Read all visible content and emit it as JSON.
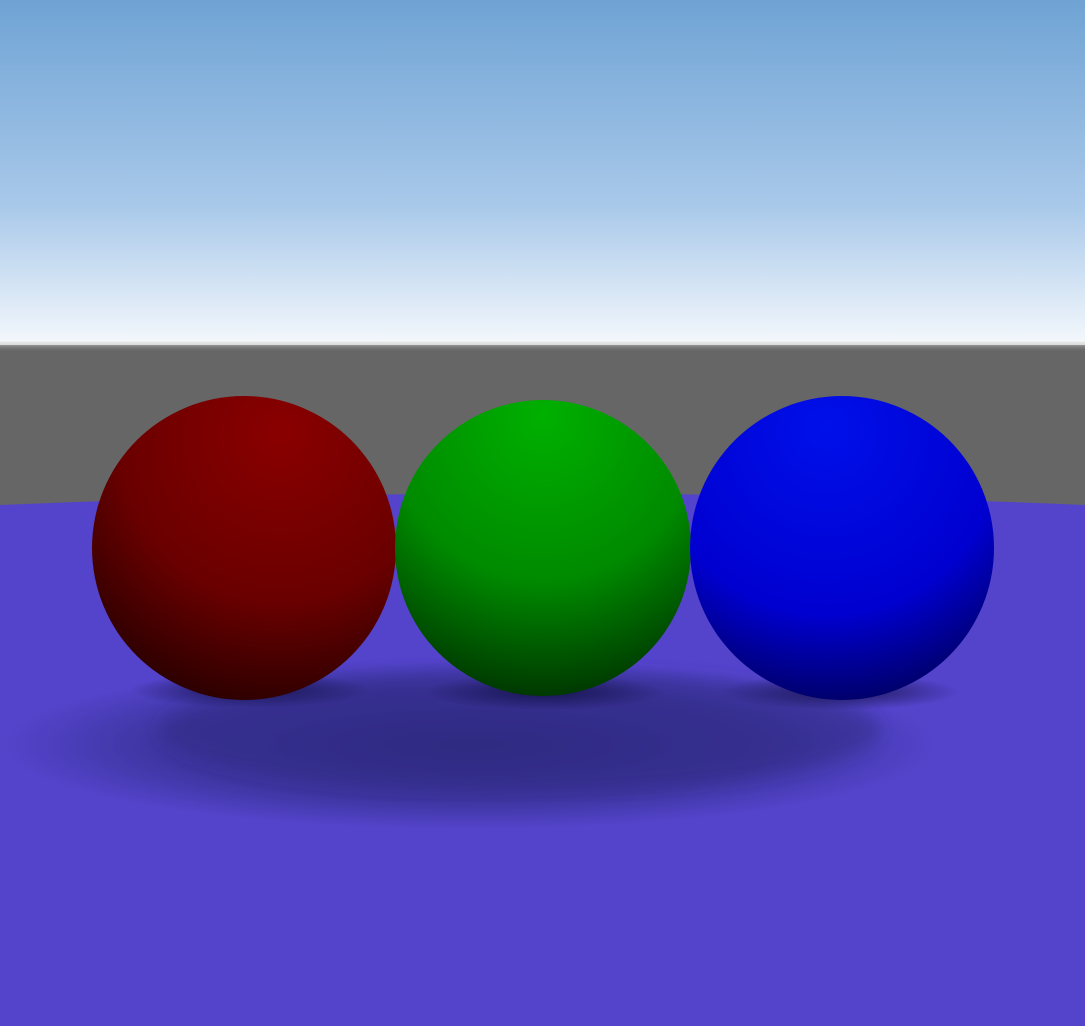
{
  "scene": {
    "sky": {
      "top_color": "#6fa3d4",
      "mid_color": "#a9c9ea",
      "horizon_color": "#f4f8fc"
    },
    "backdrop_color": "#666666",
    "floor_color": "#5444cc",
    "shadow_color": "#2e2a80",
    "spheres": [
      {
        "name": "red-sphere",
        "highlight": "#8a0000",
        "base": "#6a0000",
        "shade": "#1a0000"
      },
      {
        "name": "green-sphere",
        "highlight": "#00b000",
        "base": "#008a00",
        "shade": "#002a00"
      },
      {
        "name": "blue-sphere",
        "highlight": "#0010ea",
        "base": "#0000d0",
        "shade": "#000040"
      }
    ]
  }
}
